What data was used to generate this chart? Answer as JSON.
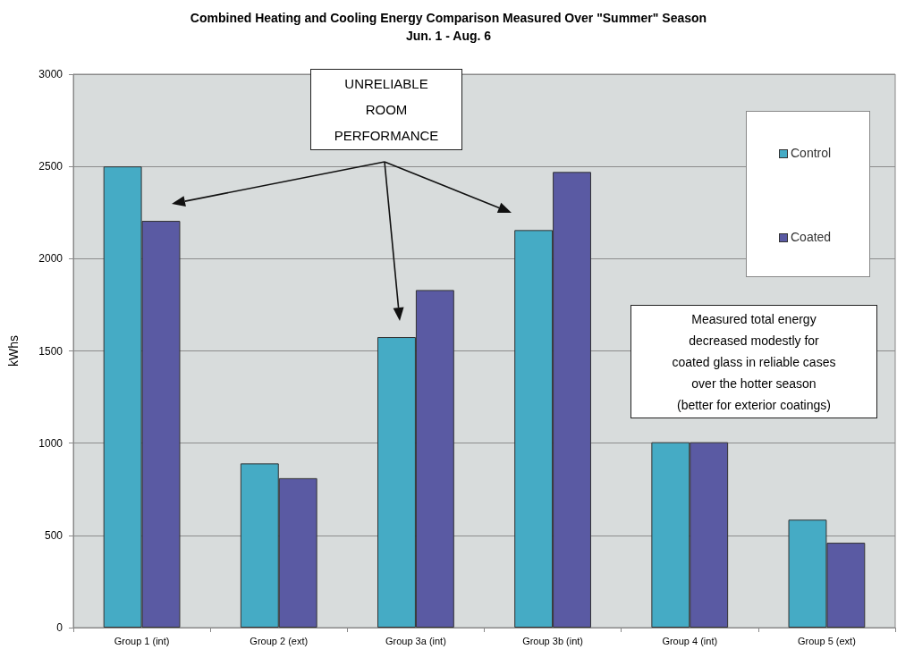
{
  "chart_data": {
    "type": "bar",
    "title": "Combined Heating and Cooling Energy Comparison Measured Over \"Summer\" Season",
    "subtitle": "Jun. 1 - Aug. 6",
    "ylabel": "kWhs",
    "categories": [
      "Group 1 (int)",
      "Group 2 (ext)",
      "Group 3a (int)",
      "Group 3b (int)",
      "Group 4 (int)",
      "Group 5 (ext)"
    ],
    "series": [
      {
        "name": "Control",
        "color": "#45abc5",
        "values": [
          2500,
          890,
          1575,
          2155,
          1005,
          585
        ]
      },
      {
        "name": "Coated",
        "color": "#5a5aa3",
        "values": [
          2205,
          810,
          1830,
          2470,
          1005,
          460
        ]
      }
    ],
    "ylim": [
      0,
      3000
    ],
    "yticks": [
      0,
      500,
      1000,
      1500,
      2000,
      2500,
      3000
    ],
    "grid": "y",
    "legend": "top right",
    "annotations": [
      "UNRELIABLE\nROOM\nPERFORMANCE",
      "Measured total energy\ndecreased modestly for\ncoated glass in reliable cases\nover the hotter season\n(better for exterior coatings)"
    ]
  }
}
